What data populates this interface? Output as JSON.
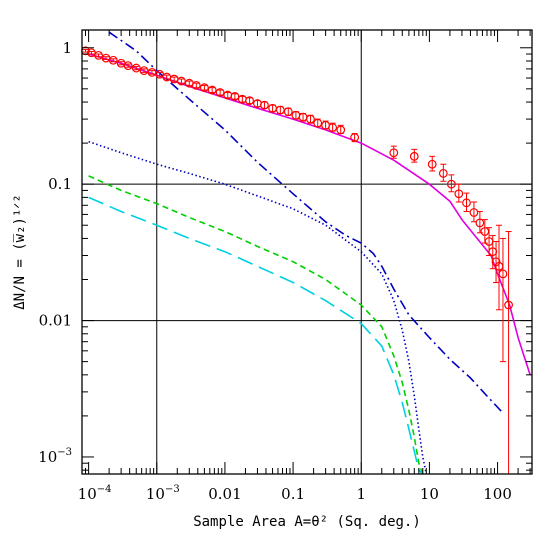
{
  "chart_data": {
    "type": "scatter",
    "xscale": "log",
    "yscale": "log",
    "xlim": [
      8e-05,
      320
    ],
    "ylim": [
      0.00075,
      1.35
    ],
    "grid_lines": {
      "x": [
        0.001,
        1
      ],
      "y": [
        0.1,
        0.01
      ]
    },
    "xlabel": "Sample Area  A=θ² (Sq. deg.)",
    "ylabel": "ΔN/N = (w̅₂)¹ᐟ²",
    "x_ticks": [
      {
        "value": 0.0001,
        "label": "10",
        "exp": "−4"
      },
      {
        "value": 0.001,
        "label": "10",
        "exp": "−3"
      },
      {
        "value": 0.01,
        "label": "0.01",
        "exp": ""
      },
      {
        "value": 0.1,
        "label": "0.1",
        "exp": ""
      },
      {
        "value": 1,
        "label": "1",
        "exp": ""
      },
      {
        "value": 10,
        "label": "10",
        "exp": ""
      },
      {
        "value": 100,
        "label": "100",
        "exp": ""
      }
    ],
    "y_ticks": [
      {
        "value": 1,
        "label": "1",
        "exp": ""
      },
      {
        "value": 0.1,
        "label": "0.1",
        "exp": ""
      },
      {
        "value": 0.01,
        "label": "0.01",
        "exp": ""
      },
      {
        "value": 0.001,
        "label": "10",
        "exp": "−3"
      }
    ],
    "series": [
      {
        "style": "solid",
        "color": "#e000e0",
        "x": [
          0.0001,
          0.0003,
          0.001,
          0.003,
          0.01,
          0.03,
          0.1,
          0.3,
          1,
          3,
          10,
          20,
          30,
          50,
          80,
          100,
          150,
          200,
          300
        ],
        "y": [
          0.9,
          0.77,
          0.63,
          0.52,
          0.43,
          0.36,
          0.3,
          0.25,
          0.2,
          0.15,
          0.1,
          0.075,
          0.055,
          0.04,
          0.03,
          0.022,
          0.013,
          0.0075,
          0.004
        ]
      },
      {
        "style": "dashdot",
        "color": "#0000c0",
        "x": [
          0.0002,
          0.0005,
          0.001,
          0.003,
          0.01,
          0.03,
          0.1,
          0.3,
          0.6,
          1,
          1.5,
          2,
          3,
          5,
          10,
          20,
          40,
          70,
          120
        ],
        "y": [
          1.3,
          0.95,
          0.68,
          0.42,
          0.25,
          0.145,
          0.085,
          0.053,
          0.042,
          0.037,
          0.031,
          0.025,
          0.017,
          0.011,
          0.0075,
          0.0052,
          0.0038,
          0.0028,
          0.0021
        ]
      },
      {
        "style": "dotted",
        "color": "#0000c0",
        "x": [
          0.0001,
          0.0003,
          0.001,
          0.003,
          0.01,
          0.03,
          0.1,
          0.3,
          1,
          2,
          3,
          4,
          5,
          6,
          7,
          8,
          9
        ],
        "y": [
          0.205,
          0.17,
          0.14,
          0.12,
          0.1,
          0.082,
          0.066,
          0.05,
          0.032,
          0.022,
          0.014,
          0.0085,
          0.005,
          0.0028,
          0.0016,
          0.001,
          0.0007
        ]
      },
      {
        "style": "dashed",
        "color": "#00d000",
        "x": [
          0.0001,
          0.0003,
          0.001,
          0.003,
          0.01,
          0.03,
          0.1,
          0.3,
          1,
          2,
          3,
          4,
          5,
          6,
          7,
          8
        ],
        "y": [
          0.115,
          0.09,
          0.072,
          0.057,
          0.045,
          0.035,
          0.027,
          0.02,
          0.013,
          0.009,
          0.0055,
          0.0035,
          0.0022,
          0.0014,
          0.0009,
          0.0007
        ]
      },
      {
        "style": "longdash",
        "color": "#00d0e0",
        "x": [
          0.0001,
          0.0003,
          0.001,
          0.003,
          0.01,
          0.03,
          0.1,
          0.3,
          1,
          2,
          3,
          4,
          5,
          6,
          7,
          8
        ],
        "y": [
          0.08,
          0.063,
          0.05,
          0.04,
          0.032,
          0.025,
          0.019,
          0.014,
          0.0095,
          0.0065,
          0.004,
          0.0025,
          0.0016,
          0.0011,
          0.0008,
          0.00065
        ]
      }
    ],
    "points": {
      "color": "#ff0000",
      "x": [
        9e-05,
        0.00011,
        0.00014,
        0.00018,
        0.00023,
        0.0003,
        0.00038,
        0.0005,
        0.00065,
        0.00085,
        0.0011,
        0.0014,
        0.0018,
        0.0023,
        0.003,
        0.0038,
        0.005,
        0.0065,
        0.0085,
        0.011,
        0.014,
        0.018,
        0.023,
        0.03,
        0.038,
        0.05,
        0.065,
        0.085,
        0.11,
        0.14,
        0.18,
        0.23,
        0.3,
        0.38,
        0.5,
        0.8,
        3,
        6,
        11,
        16,
        21,
        27,
        35,
        45,
        55,
        65,
        75,
        85,
        95,
        105,
        120,
        145
      ],
      "y": [
        0.95,
        0.92,
        0.88,
        0.84,
        0.81,
        0.77,
        0.74,
        0.71,
        0.68,
        0.66,
        0.64,
        0.61,
        0.59,
        0.57,
        0.55,
        0.53,
        0.51,
        0.49,
        0.47,
        0.45,
        0.44,
        0.42,
        0.41,
        0.39,
        0.38,
        0.36,
        0.35,
        0.34,
        0.32,
        0.31,
        0.3,
        0.28,
        0.27,
        0.26,
        0.25,
        0.22,
        0.17,
        0.16,
        0.14,
        0.12,
        0.1,
        0.085,
        0.073,
        0.062,
        0.052,
        0.045,
        0.038,
        0.032,
        0.027,
        0.025,
        0.022,
        0.013
      ],
      "err_lo": [
        0.93,
        0.9,
        0.86,
        0.82,
        0.79,
        0.75,
        0.72,
        0.69,
        0.66,
        0.64,
        0.62,
        0.59,
        0.57,
        0.55,
        0.53,
        0.51,
        0.49,
        0.47,
        0.45,
        0.43,
        0.42,
        0.4,
        0.39,
        0.37,
        0.36,
        0.34,
        0.33,
        0.32,
        0.3,
        0.29,
        0.28,
        0.265,
        0.255,
        0.245,
        0.235,
        0.205,
        0.155,
        0.145,
        0.125,
        0.105,
        0.088,
        0.074,
        0.063,
        0.053,
        0.044,
        0.037,
        0.03,
        0.024,
        0.019,
        0.012,
        0.005,
        0.00075
      ],
      "err_hi": [
        0.97,
        0.94,
        0.9,
        0.86,
        0.83,
        0.79,
        0.76,
        0.73,
        0.7,
        0.68,
        0.66,
        0.63,
        0.61,
        0.59,
        0.57,
        0.55,
        0.53,
        0.51,
        0.49,
        0.47,
        0.46,
        0.44,
        0.43,
        0.41,
        0.4,
        0.38,
        0.37,
        0.36,
        0.34,
        0.33,
        0.32,
        0.3,
        0.29,
        0.28,
        0.27,
        0.235,
        0.19,
        0.18,
        0.16,
        0.14,
        0.117,
        0.1,
        0.086,
        0.074,
        0.063,
        0.055,
        0.048,
        0.042,
        0.038,
        0.05,
        0.04,
        0.045
      ]
    }
  }
}
